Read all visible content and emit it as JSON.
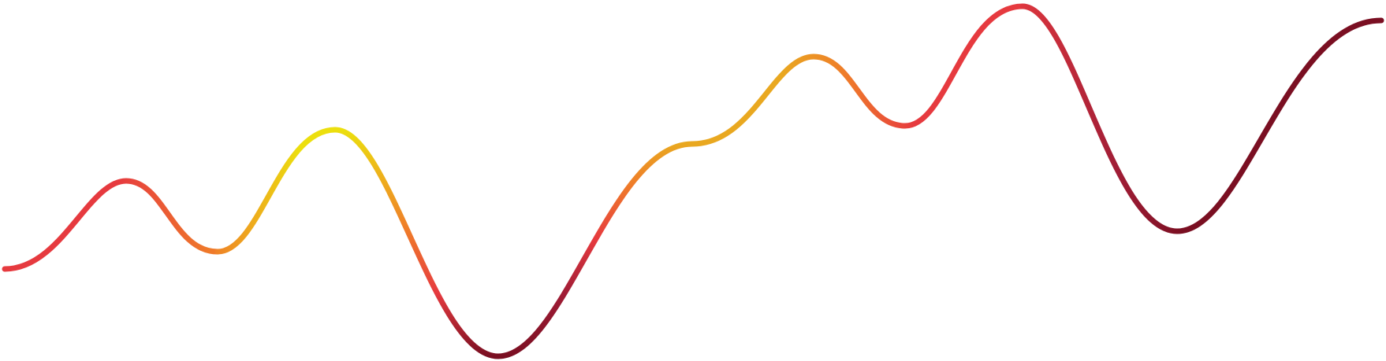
{
  "wave": {
    "colors": {
      "red": "#e63a3f",
      "orange": "#ef7a2a",
      "amber": "#e9a820",
      "yellow": "#ecdf0e",
      "crimson": "#a11d36",
      "maroon": "#7a0f22"
    }
  }
}
